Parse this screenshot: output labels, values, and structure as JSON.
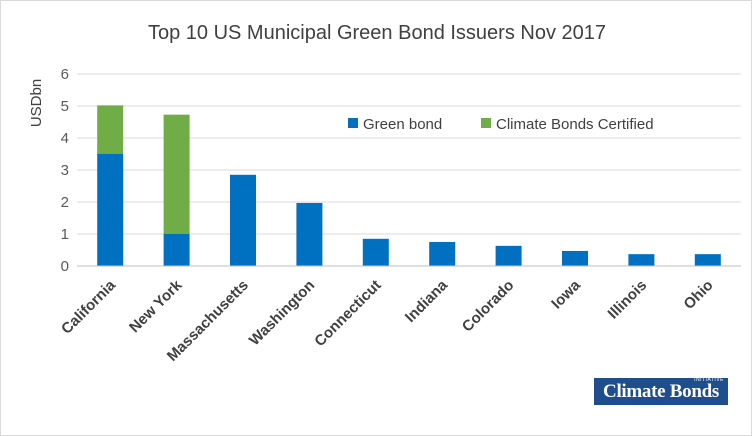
{
  "chart_data": {
    "type": "bar",
    "stacked": true,
    "title": "Top 10 US Municipal Green Bond Issuers Nov 2017",
    "xlabel": "",
    "ylabel": "USDbn",
    "ylim": [
      0,
      6
    ],
    "yticks": [
      0,
      1,
      2,
      3,
      4,
      5,
      6
    ],
    "grid": true,
    "legend_position": "top-right",
    "categories": [
      "California",
      "New York",
      "Massachusetts",
      "Washington",
      "Connecticut",
      "Indiana",
      "Colorado",
      "Iowa",
      "Illinois",
      "Ohio"
    ],
    "series": [
      {
        "name": "Green bond",
        "color": "#0070c0",
        "values": [
          3.5,
          1.0,
          2.85,
          1.97,
          0.85,
          0.75,
          0.63,
          0.47,
          0.37,
          0.37
        ]
      },
      {
        "name": "Climate Bonds Certified",
        "color": "#70ad47",
        "values": [
          1.52,
          3.73,
          0,
          0,
          0,
          0,
          0,
          0,
          0,
          0
        ]
      }
    ]
  },
  "logo": {
    "text": "Climate Bonds",
    "small_text": "INITIATIVE"
  }
}
